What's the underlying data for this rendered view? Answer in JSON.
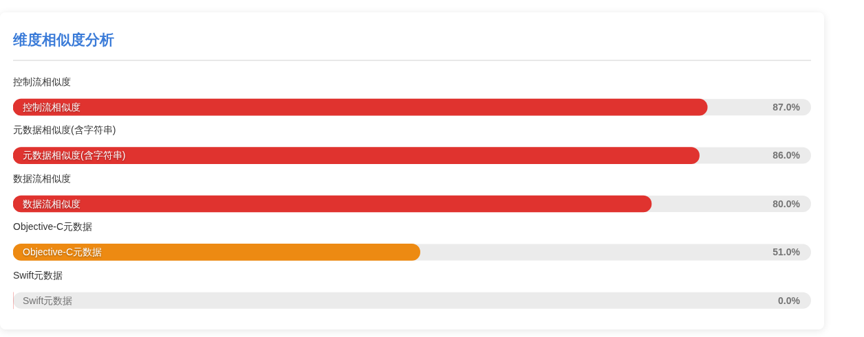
{
  "chart_data": {
    "type": "bar",
    "orientation": "horizontal",
    "title": "维度相似度分析",
    "categories": [
      "控制流相似度",
      "元数据相似度(含字符串)",
      "数据流相似度",
      "Objective-C元数据",
      "Swift元数据"
    ],
    "values": [
      87.0,
      86.0,
      80.0,
      51.0,
      0.0
    ],
    "colors": [
      "#e0332f",
      "#e0332f",
      "#e0332f",
      "#ed8a12",
      "#e0332f"
    ],
    "value_labels": [
      "87.0%",
      "86.0%",
      "80.0%",
      "51.0%",
      "0.0%"
    ],
    "xlim": [
      0,
      100
    ],
    "tick_labels": false,
    "grid": false,
    "legend": false
  }
}
